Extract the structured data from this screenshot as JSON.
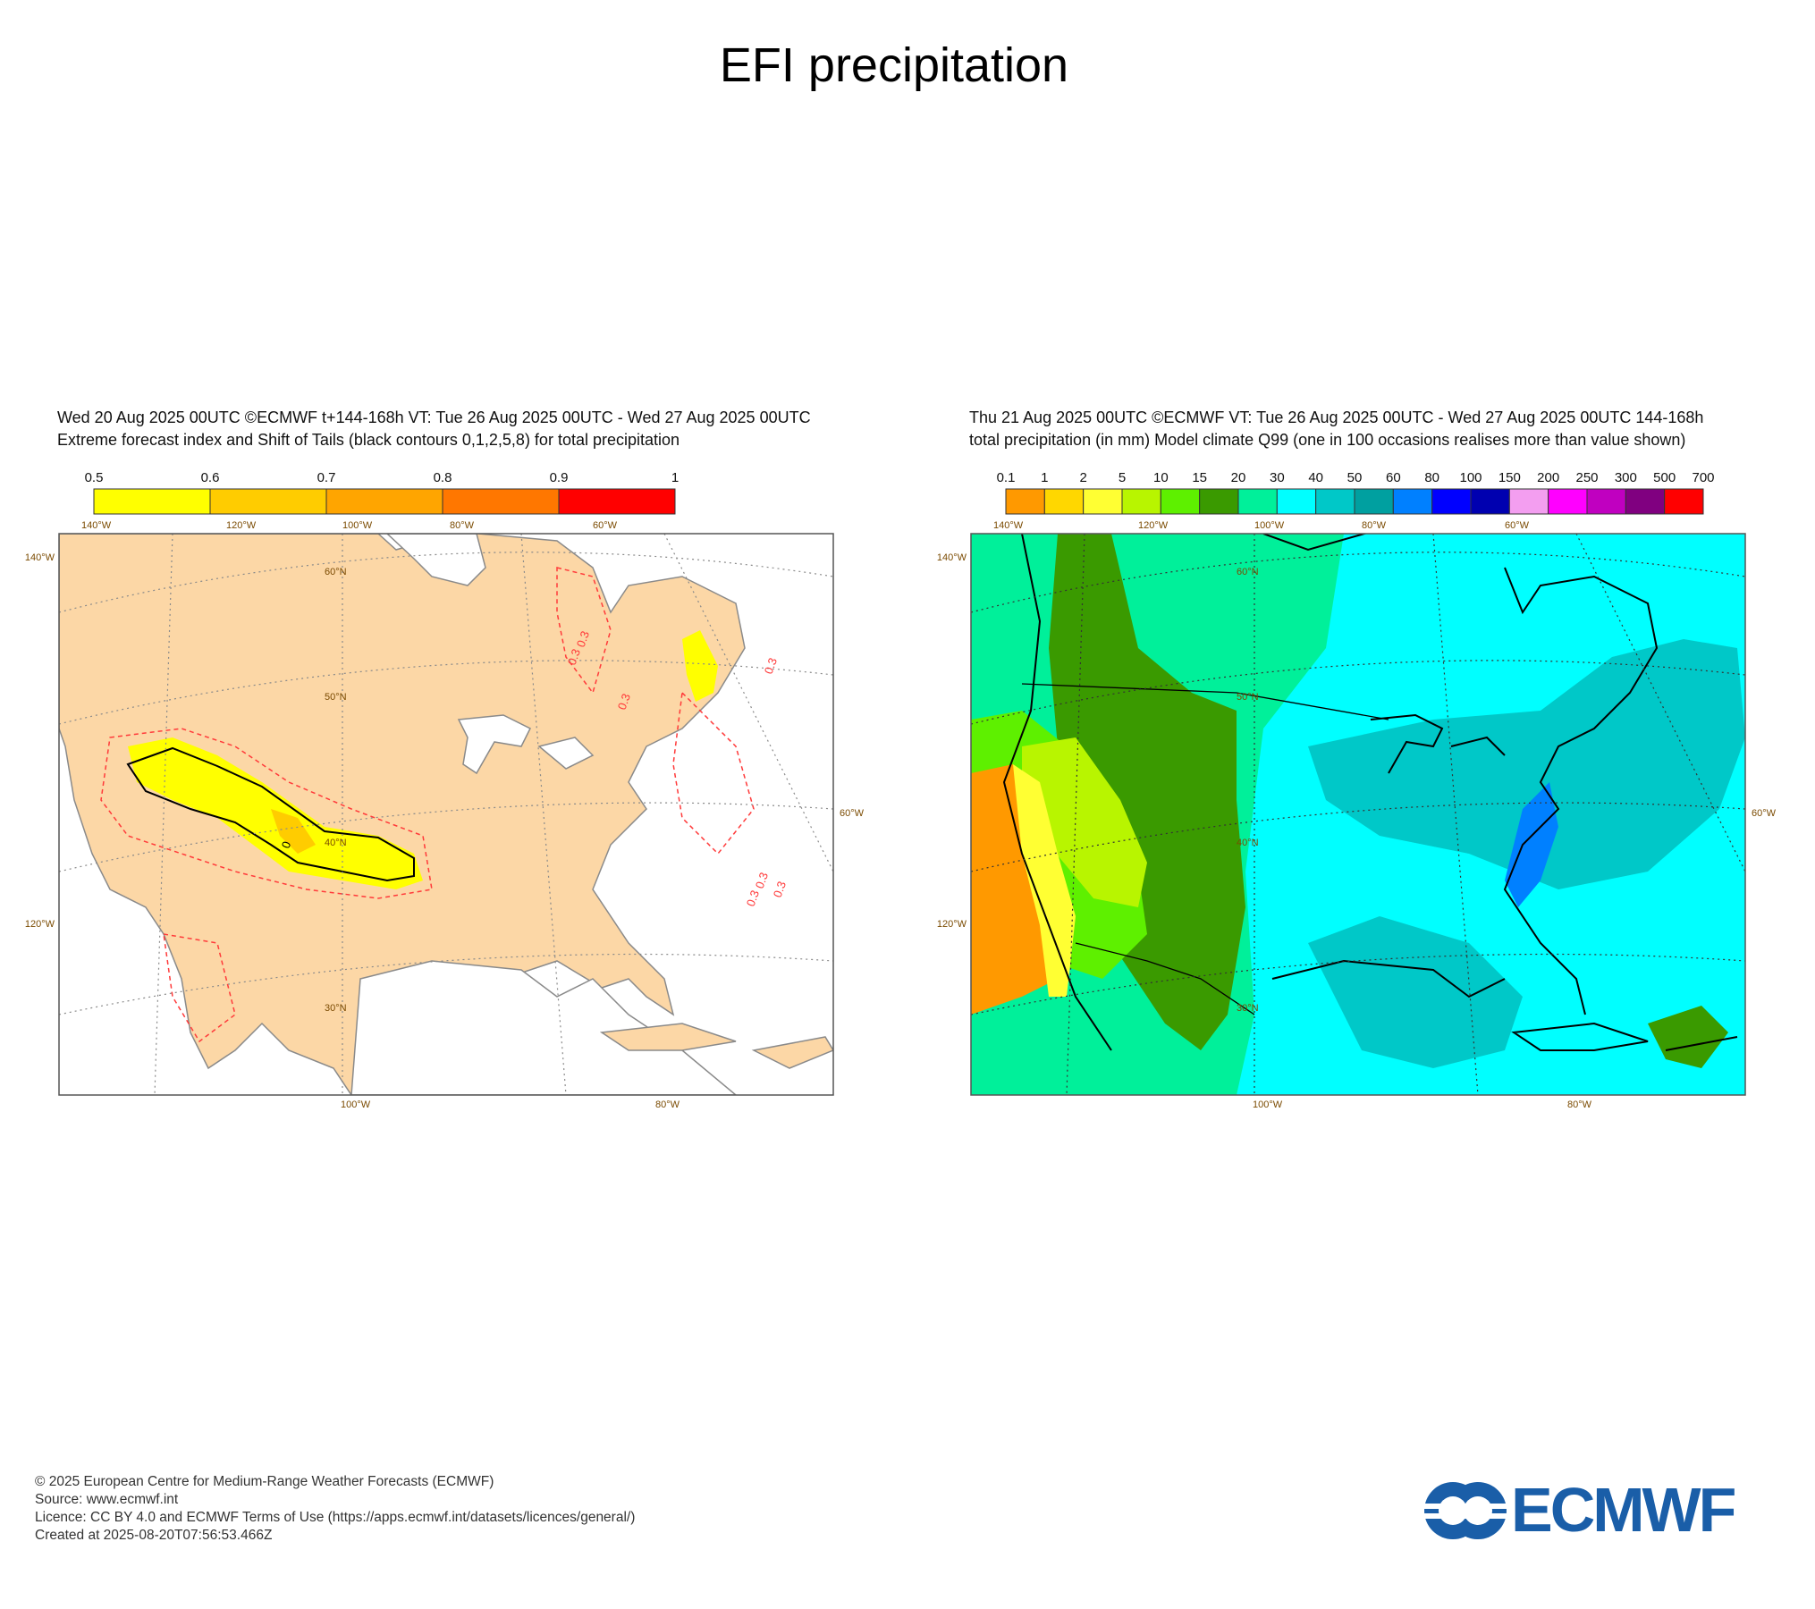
{
  "page": {
    "title": "EFI precipitation"
  },
  "panels": {
    "left": {
      "header_line1": "Wed 20 Aug 2025 00UTC ©ECMWF t+144-168h  VT: Tue 26 Aug 2025 00UTC - Wed 27 Aug 2025 00UTC",
      "header_line2": "Extreme forecast index and Shift of Tails (black contours 0,1,2,5,8) for total precipitation",
      "legend": {
        "labels": [
          "0.5",
          "0.6",
          "0.7",
          "0.8",
          "0.9",
          "1"
        ],
        "colors": [
          "#ffff00",
          "#ffcc00",
          "#ffa500",
          "#ff7700",
          "#ff0000"
        ]
      },
      "map": {
        "lon_labels_top": [
          "140°W",
          "120°W",
          "100°W",
          "80°W",
          "60°W"
        ],
        "lon_labels_bottom": [
          "100°W",
          "80°W"
        ],
        "lat_labels_inner": [
          "60°N",
          "50°N",
          "40°N",
          "30°N"
        ],
        "side_labels_left": [
          "140°W",
          "120°W"
        ],
        "side_label_right": "60°W",
        "contour_labels": [
          "0.3",
          "0.3",
          "0.3",
          "0.3",
          "0.3",
          "0.3",
          "0.3",
          "0"
        ],
        "colors": {
          "land": "#fcd7a6",
          "ocean": "#ffffff",
          "coast": "#8a8a8a",
          "contour_red": "#ff3a3a"
        }
      }
    },
    "right": {
      "header_line1": "Thu 21 Aug 2025 00UTC ©ECMWF VT: Tue 26 Aug 2025 00UTC - Wed 27 Aug 2025 00UTC   144-168h",
      "header_line2": "total precipitation (in mm)  Model climate Q99 (one in 100 occasions realises more than value shown)",
      "legend": {
        "labels": [
          "0.1",
          "1",
          "2",
          "5",
          "10",
          "15",
          "20",
          "30",
          "40",
          "50",
          "60",
          "80",
          "100",
          "150",
          "200",
          "250",
          "300",
          "500",
          "700"
        ],
        "colors": [
          "#ff9900",
          "#ffd700",
          "#ffff33",
          "#b8f500",
          "#5ef000",
          "#3a9a00",
          "#00f09a",
          "#00ffff",
          "#00c8c8",
          "#00a0a0",
          "#0080ff",
          "#0000ff",
          "#0000b0",
          "#f39ef0",
          "#ff00ff",
          "#c000c0",
          "#800080",
          "#ff0000"
        ]
      },
      "map": {
        "lon_labels_top": [
          "140°W",
          "120°W",
          "100°W",
          "80°W",
          "60°W"
        ],
        "lon_labels_bottom": [
          "100°W",
          "80°W"
        ],
        "lat_labels_inner": [
          "60°N",
          "50°N",
          "40°N",
          "30°N"
        ],
        "side_labels_left": [
          "140°W",
          "120°W"
        ],
        "side_label_right": "60°W"
      }
    }
  },
  "footer": {
    "line1": "© 2025 European Centre for Medium-Range Weather Forecasts (ECMWF)",
    "line2": "Source: www.ecmwf.int",
    "line3": "Licence: CC BY 4.0 and ECMWF Terms of Use (https://apps.ecmwf.int/datasets/licences/general/)",
    "line4": "Created at 2025-08-20T07:56:53.466Z"
  },
  "logo": {
    "text": "ECMWF",
    "color": "#1a5ea8"
  }
}
